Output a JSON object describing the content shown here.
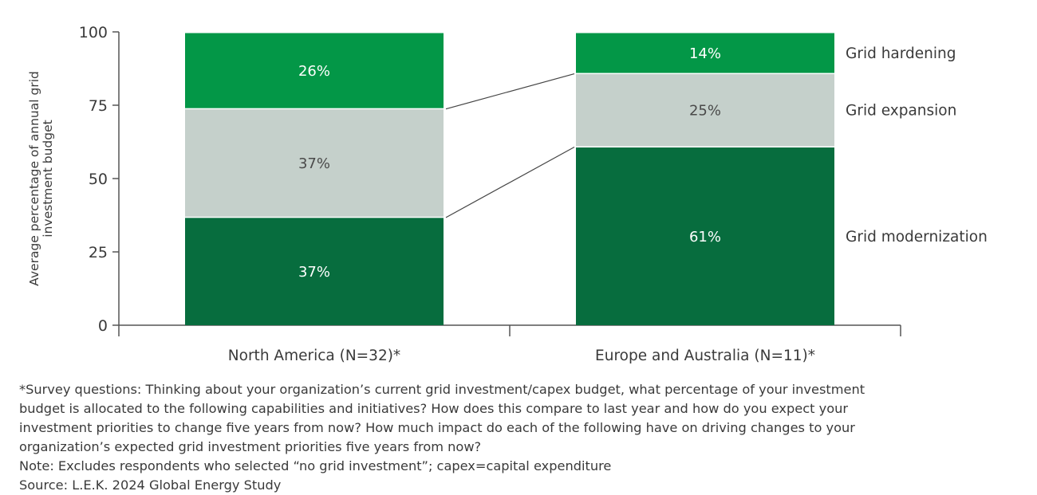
{
  "chart_data": {
    "type": "bar",
    "stacked": true,
    "ylabel": "Average percentage of annual grid investment budget",
    "ylabel_lines": [
      "Average percentage of annual grid",
      "investment budget"
    ],
    "ylim": [
      0,
      100
    ],
    "yticks": [
      0,
      25,
      50,
      75,
      100
    ],
    "grid": false,
    "legend_placement": "right",
    "categories": [
      "North America (N=32)*",
      "Europe and Australia (N=11)*"
    ],
    "series": [
      {
        "name": "Grid modernization",
        "values": [
          37,
          61
        ],
        "labels": [
          "37%",
          "61%"
        ],
        "color": "#076d3e",
        "label_color": "#ffffff"
      },
      {
        "name": "Grid expansion",
        "values": [
          37,
          25
        ],
        "labels": [
          "37%",
          "25%"
        ],
        "color": "#c5d0cb",
        "label_color": "#4a4a4a"
      },
      {
        "name": "Grid hardening",
        "values": [
          26,
          14
        ],
        "labels": [
          "26%",
          "14%"
        ],
        "color": "#039747",
        "label_color": "#ffffff"
      }
    ]
  },
  "footnotes": [
    "*Survey questions: Thinking about your organization’s current grid investment/capex budget, what percentage of your investment",
    "budget is allocated to the following capabilities and initiatives? How does this compare to last year and how do you expect your",
    "investment priorities to change five years from now? How much impact do each of the following have on driving changes to your",
    "organization’s expected grid investment priorities five years from now?",
    "Note: Excludes respondents who selected “no grid investment”; capex=capital expenditure",
    "Source: L.E.K. 2024 Global Energy Study"
  ]
}
